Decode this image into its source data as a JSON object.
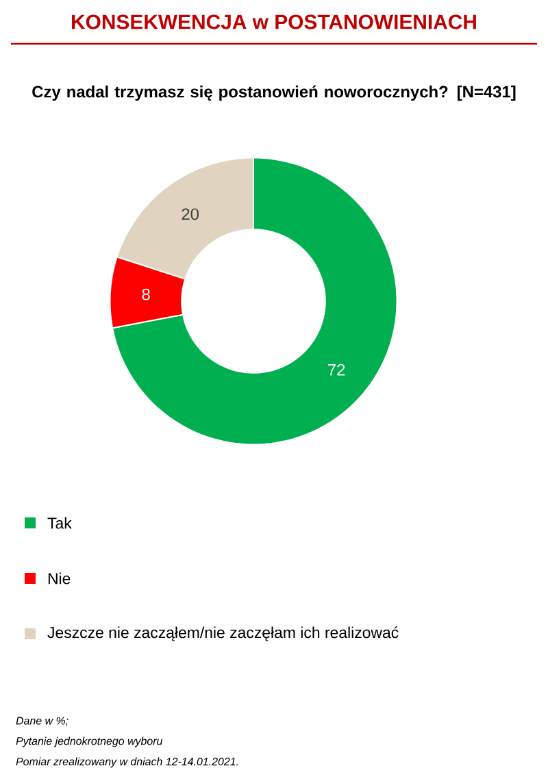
{
  "chart_data": {
    "type": "donut",
    "title": "KONSEKWENCJA w POSTANOWIENIACH",
    "subtitle": "Czy nadal trzymasz się postanowień noworocznych? [N=431]",
    "categories": [
      "Tak",
      "Nie",
      "Jeszcze nie zacząłem/nie zaczęłam ich realizować"
    ],
    "values": [
      72,
      8,
      20
    ],
    "colors": [
      "#00b050",
      "#ff0000",
      "#e0d3bf"
    ],
    "data_labels": true,
    "legend": "bottom",
    "annotations": [
      "Dane w %;",
      "Pytanie jednokrotnego wyboru",
      "Pomiar zrealizowany w dniach 12-14.01.2021."
    ]
  }
}
